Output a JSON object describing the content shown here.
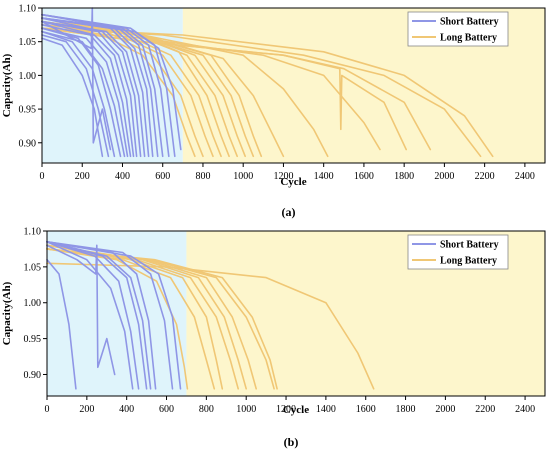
{
  "colors": {
    "short_region": "#dff4fb",
    "long_region": "#fdf6cc",
    "short_line": "#8f96e6",
    "long_line": "#f0c775"
  },
  "chart_data": [
    {
      "type": "line",
      "panel_label": "(a)",
      "xlabel": "Cycle",
      "ylabel": "Capacity(Ah)",
      "xlim": [
        0,
        2500
      ],
      "ylim": [
        0.87,
        1.1
      ],
      "xticks": [
        "0",
        "200",
        "400",
        "600",
        "800",
        "1000",
        "1200",
        "1400",
        "1600",
        "1800",
        "2000",
        "2200",
        "2400"
      ],
      "yticks": [
        "0.90",
        "0.95",
        "1.00",
        "1.05",
        "1.10"
      ],
      "grid": false,
      "legend_position": "top-right",
      "regions": [
        {
          "from": 0,
          "to": 700,
          "label": "short"
        },
        {
          "from": 700,
          "to": 2500,
          "label": "long"
        }
      ],
      "legend": [
        {
          "name": "Short Battery",
          "color_key": "short_line"
        },
        {
          "name": "Long Battery",
          "color_key": "long_line"
        }
      ],
      "series": [
        {
          "group": "Short Battery",
          "x": [
            0,
            100,
            200,
            260,
            300
          ],
          "y": [
            1.055,
            1.045,
            1.0,
            0.95,
            0.88
          ]
        },
        {
          "group": "Short Battery",
          "x": [
            0,
            120,
            220,
            280,
            330
          ],
          "y": [
            1.06,
            1.05,
            1.01,
            0.95,
            0.88
          ]
        },
        {
          "group": "Short Battery",
          "x": [
            0,
            150,
            250,
            310,
            360
          ],
          "y": [
            1.065,
            1.05,
            1.01,
            0.95,
            0.88
          ]
        },
        {
          "group": "Short Battery",
          "x": [
            0,
            180,
            280,
            340,
            390
          ],
          "y": [
            1.07,
            1.055,
            1.015,
            0.95,
            0.88
          ]
        },
        {
          "group": "Short Battery",
          "x": [
            0,
            200,
            300,
            360,
            410
          ],
          "y": [
            1.065,
            1.05,
            1.01,
            0.955,
            0.88
          ]
        },
        {
          "group": "Short Battery",
          "x": [
            0,
            220,
            320,
            380,
            425
          ],
          "y": [
            1.07,
            1.055,
            1.02,
            0.96,
            0.88
          ]
        },
        {
          "group": "Short Battery",
          "x": [
            0,
            240,
            340,
            400,
            440
          ],
          "y": [
            1.075,
            1.06,
            1.025,
            0.96,
            0.88
          ]
        },
        {
          "group": "Short Battery",
          "x": [
            0,
            260,
            360,
            420,
            455
          ],
          "y": [
            1.08,
            1.06,
            1.03,
            0.965,
            0.88
          ]
        },
        {
          "group": "Short Battery",
          "x": [
            0,
            280,
            380,
            440,
            470
          ],
          "y": [
            1.08,
            1.065,
            1.03,
            0.97,
            0.88
          ]
        },
        {
          "group": "Short Battery",
          "x": [
            0,
            300,
            400,
            460,
            490
          ],
          "y": [
            1.085,
            1.065,
            1.035,
            0.97,
            0.88
          ]
        },
        {
          "group": "Short Battery",
          "x": [
            0,
            320,
            420,
            480,
            510
          ],
          "y": [
            1.08,
            1.065,
            1.035,
            0.97,
            0.88
          ]
        },
        {
          "group": "Short Battery",
          "x": [
            0,
            340,
            440,
            500,
            530
          ],
          "y": [
            1.085,
            1.07,
            1.04,
            0.975,
            0.88
          ]
        },
        {
          "group": "Short Battery",
          "x": [
            0,
            360,
            460,
            520,
            550
          ],
          "y": [
            1.085,
            1.07,
            1.04,
            0.98,
            0.88
          ]
        },
        {
          "group": "Short Battery",
          "x": [
            0,
            380,
            480,
            540,
            575
          ],
          "y": [
            1.09,
            1.07,
            1.045,
            0.98,
            0.88
          ]
        },
        {
          "group": "Short Battery",
          "x": [
            0,
            400,
            500,
            560,
            600
          ],
          "y": [
            1.085,
            1.07,
            1.045,
            0.98,
            0.88
          ]
        },
        {
          "group": "Short Battery",
          "x": [
            0,
            420,
            530,
            590,
            630
          ],
          "y": [
            1.09,
            1.07,
            1.045,
            0.98,
            0.88
          ]
        },
        {
          "group": "Short Battery",
          "x": [
            0,
            440,
            560,
            620,
            660
          ],
          "y": [
            1.09,
            1.07,
            1.045,
            0.98,
            0.88
          ]
        },
        {
          "group": "Short Battery",
          "x": [
            0,
            460,
            580,
            650,
            690
          ],
          "y": [
            1.085,
            1.065,
            1.04,
            0.98,
            0.89
          ]
        },
        {
          "group": "Short Battery",
          "x": [
            0,
            120,
            245,
            250,
            255,
            300,
            340
          ],
          "y": [
            1.08,
            1.06,
            1.04,
            1.1,
            0.9,
            0.95,
            0.89
          ]
        },
        {
          "group": "Long Battery",
          "x": [
            0,
            300,
            500,
            650,
            720,
            760
          ],
          "y": [
            1.08,
            1.06,
            1.03,
            0.97,
            0.91,
            0.88
          ]
        },
        {
          "group": "Long Battery",
          "x": [
            0,
            320,
            550,
            690,
            760,
            800
          ],
          "y": [
            1.08,
            1.065,
            1.03,
            0.97,
            0.91,
            0.88
          ]
        },
        {
          "group": "Long Battery",
          "x": [
            0,
            350,
            600,
            740,
            810,
            850
          ],
          "y": [
            1.085,
            1.065,
            1.03,
            0.97,
            0.91,
            0.88
          ]
        },
        {
          "group": "Long Battery",
          "x": [
            0,
            380,
            640,
            780,
            850,
            890
          ],
          "y": [
            1.085,
            1.065,
            1.03,
            0.97,
            0.91,
            0.88
          ]
        },
        {
          "group": "Long Battery",
          "x": [
            0,
            400,
            680,
            820,
            890,
            930
          ],
          "y": [
            1.09,
            1.07,
            1.035,
            0.97,
            0.91,
            0.88
          ]
        },
        {
          "group": "Long Battery",
          "x": [
            0,
            420,
            720,
            860,
            930,
            970
          ],
          "y": [
            1.085,
            1.065,
            1.03,
            0.97,
            0.91,
            0.88
          ]
        },
        {
          "group": "Long Battery",
          "x": [
            0,
            440,
            760,
            900,
            970,
            1010
          ],
          "y": [
            1.085,
            1.065,
            1.03,
            0.97,
            0.91,
            0.88
          ]
        },
        {
          "group": "Long Battery",
          "x": [
            0,
            460,
            800,
            940,
            1010,
            1050
          ],
          "y": [
            1.08,
            1.06,
            1.03,
            0.97,
            0.91,
            0.88
          ]
        },
        {
          "group": "Long Battery",
          "x": [
            0,
            480,
            840,
            980,
            1050,
            1090
          ],
          "y": [
            1.08,
            1.06,
            1.03,
            0.97,
            0.91,
            0.88
          ]
        },
        {
          "group": "Long Battery",
          "x": [
            0,
            500,
            900,
            1050,
            1150,
            1200
          ],
          "y": [
            1.08,
            1.06,
            1.025,
            0.97,
            0.91,
            0.88
          ]
        },
        {
          "group": "Long Battery",
          "x": [
            0,
            500,
            1000,
            1200,
            1350,
            1420
          ],
          "y": [
            1.075,
            1.06,
            1.03,
            0.98,
            0.92,
            0.88
          ]
        },
        {
          "group": "Long Battery",
          "x": [
            0,
            500,
            1100,
            1400,
            1600,
            1680
          ],
          "y": [
            1.07,
            1.055,
            1.03,
            1.0,
            0.93,
            0.89
          ]
        },
        {
          "group": "Long Battery",
          "x": [
            0,
            500,
            1200,
            1480,
            1485,
            1490,
            1700,
            1810
          ],
          "y": [
            1.07,
            1.05,
            1.03,
            1.01,
            0.92,
            1.0,
            0.96,
            0.89
          ]
        },
        {
          "group": "Long Battery",
          "x": [
            0,
            500,
            1200,
            1500,
            1800,
            1930
          ],
          "y": [
            1.07,
            1.05,
            1.03,
            1.01,
            0.96,
            0.89
          ]
        },
        {
          "group": "Long Battery",
          "x": [
            0,
            600,
            1300,
            1700,
            2000,
            2180
          ],
          "y": [
            1.07,
            1.06,
            1.03,
            1.0,
            0.95,
            0.88
          ]
        },
        {
          "group": "Long Battery",
          "x": [
            0,
            700,
            1400,
            1800,
            2100,
            2240
          ],
          "y": [
            1.07,
            1.06,
            1.035,
            1.0,
            0.94,
            0.88
          ]
        }
      ]
    },
    {
      "type": "line",
      "panel_label": "(b)",
      "xlabel": "Cycle",
      "ylabel": "Capacity(Ah)",
      "xlim": [
        0,
        2500
      ],
      "ylim": [
        0.87,
        1.1
      ],
      "xticks": [
        "0",
        "200",
        "400",
        "600",
        "800",
        "1000",
        "1200",
        "1400",
        "1600",
        "1800",
        "2000",
        "2200",
        "2400"
      ],
      "yticks": [
        "0.90",
        "0.95",
        "1.00",
        "1.05",
        "1.10"
      ],
      "grid": false,
      "legend_position": "top-right",
      "regions": [
        {
          "from": 0,
          "to": 700,
          "label": "short"
        },
        {
          "from": 700,
          "to": 2500,
          "label": "long"
        }
      ],
      "legend": [
        {
          "name": "Short Battery",
          "color_key": "short_line"
        },
        {
          "name": "Long Battery",
          "color_key": "long_line"
        }
      ],
      "series": [
        {
          "group": "Short Battery",
          "x": [
            0,
            60,
            110,
            145
          ],
          "y": [
            1.06,
            1.04,
            0.97,
            0.88
          ]
        },
        {
          "group": "Short Battery",
          "x": [
            0,
            150,
            245,
            250,
            255,
            300,
            340
          ],
          "y": [
            1.08,
            1.06,
            1.04,
            1.08,
            0.91,
            0.95,
            0.9
          ]
        },
        {
          "group": "Short Battery",
          "x": [
            0,
            200,
            320,
            390,
            430
          ],
          "y": [
            1.085,
            1.06,
            1.02,
            0.96,
            0.88
          ]
        },
        {
          "group": "Short Battery",
          "x": [
            0,
            240,
            360,
            420,
            460
          ],
          "y": [
            1.085,
            1.065,
            1.03,
            0.96,
            0.88
          ]
        },
        {
          "group": "Short Battery",
          "x": [
            0,
            280,
            400,
            460,
            500
          ],
          "y": [
            1.085,
            1.065,
            1.035,
            0.97,
            0.88
          ]
        },
        {
          "group": "Short Battery",
          "x": [
            0,
            300,
            420,
            480,
            520
          ],
          "y": [
            1.085,
            1.065,
            1.035,
            0.975,
            0.88
          ]
        },
        {
          "group": "Short Battery",
          "x": [
            0,
            330,
            450,
            510,
            545
          ],
          "y": [
            1.085,
            1.07,
            1.04,
            0.975,
            0.88
          ]
        },
        {
          "group": "Short Battery",
          "x": [
            0,
            380,
            520,
            590,
            630
          ],
          "y": [
            1.085,
            1.07,
            1.04,
            0.975,
            0.88
          ]
        },
        {
          "group": "Short Battery",
          "x": [
            0,
            420,
            560,
            630,
            670
          ],
          "y": [
            1.085,
            1.065,
            1.04,
            0.98,
            0.88
          ]
        },
        {
          "group": "Long Battery",
          "x": [
            0,
            350,
            550,
            650,
            690,
            705
          ],
          "y": [
            1.075,
            1.06,
            1.03,
            0.97,
            0.91,
            0.88
          ]
        },
        {
          "group": "Long Battery",
          "x": [
            0,
            380,
            620,
            740,
            800,
            840
          ],
          "y": [
            1.075,
            1.06,
            1.035,
            0.98,
            0.92,
            0.88
          ]
        },
        {
          "group": "Long Battery",
          "x": [
            0,
            420,
            680,
            800,
            850,
            880
          ],
          "y": [
            1.08,
            1.06,
            1.035,
            0.98,
            0.92,
            0.88
          ]
        },
        {
          "group": "Long Battery",
          "x": [
            0,
            450,
            720,
            850,
            920,
            960
          ],
          "y": [
            1.08,
            1.06,
            1.035,
            0.98,
            0.92,
            0.88
          ]
        },
        {
          "group": "Long Battery",
          "x": [
            0,
            480,
            760,
            890,
            960,
            1000
          ],
          "y": [
            1.08,
            1.06,
            1.035,
            0.98,
            0.92,
            0.88
          ]
        },
        {
          "group": "Long Battery",
          "x": [
            0,
            500,
            800,
            930,
            1010,
            1050
          ],
          "y": [
            1.075,
            1.06,
            1.035,
            0.98,
            0.92,
            0.88
          ]
        },
        {
          "group": "Long Battery",
          "x": [
            0,
            520,
            850,
            1000,
            1100,
            1140
          ],
          "y": [
            1.075,
            1.06,
            1.035,
            0.98,
            0.92,
            0.88
          ]
        },
        {
          "group": "Long Battery",
          "x": [
            0,
            540,
            880,
            1030,
            1120,
            1155
          ],
          "y": [
            1.075,
            1.06,
            1.035,
            0.98,
            0.92,
            0.88
          ]
        },
        {
          "group": "Long Battery",
          "x": [
            0,
            600,
            1100,
            1400,
            1560,
            1640
          ],
          "y": [
            1.055,
            1.05,
            1.035,
            1.0,
            0.93,
            0.88
          ]
        }
      ]
    }
  ]
}
